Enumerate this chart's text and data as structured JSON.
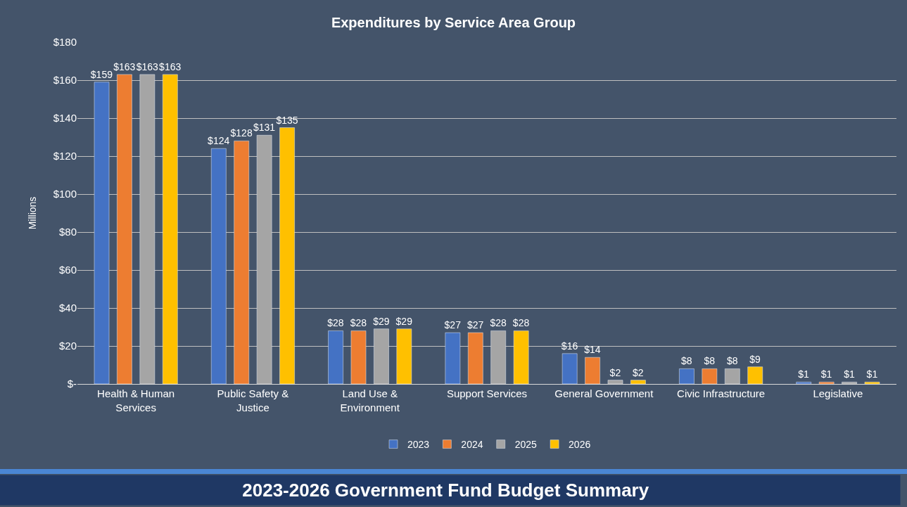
{
  "chart_data": {
    "type": "bar",
    "title": "Expenditures by Service Area Group",
    "ylabel": "Millions",
    "annotations": [
      "2023-2026 Government Fund Budget Summary"
    ],
    "categories": [
      "Health & Human\nServices",
      "Public Safety &\nJustice",
      "Land Use &\nEnvironment",
      "Support Services",
      "General Government",
      "Civic Infrastructure",
      "Legislative"
    ],
    "series": [
      {
        "name": "2023",
        "color": "#4472c4",
        "values": [
          159,
          124,
          28,
          27,
          16,
          8,
          1
        ],
        "value_labels": [
          "$159",
          "$124",
          "$28",
          "$27",
          "$16",
          "$8",
          "$1"
        ]
      },
      {
        "name": "2024",
        "color": "#ed7d31",
        "values": [
          163,
          128,
          28,
          27,
          14,
          8,
          1
        ],
        "value_labels": [
          "$163",
          "$128",
          "$28",
          "$27",
          "$14",
          "$8",
          "$1"
        ]
      },
      {
        "name": "2025",
        "color": "#a5a5a5",
        "values": [
          163,
          131,
          29,
          28,
          2,
          8,
          1
        ],
        "value_labels": [
          "$163",
          "$131",
          "$29",
          "$28",
          "$2",
          "$8",
          "$1"
        ]
      },
      {
        "name": "2026",
        "color": "#ffc000",
        "values": [
          163,
          135,
          29,
          28,
          2,
          9,
          1
        ],
        "value_labels": [
          "$163",
          "$135",
          "$29",
          "$28",
          "$2",
          "$9",
          "$1"
        ]
      }
    ],
    "ylim": [
      0,
      180
    ],
    "yticks": [
      {
        "value": 0,
        "label": "$-"
      },
      {
        "value": 20,
        "label": "$20"
      },
      {
        "value": 40,
        "label": "$40"
      },
      {
        "value": 60,
        "label": "$60"
      },
      {
        "value": 80,
        "label": "$80"
      },
      {
        "value": 100,
        "label": "$100"
      },
      {
        "value": 120,
        "label": "$120"
      },
      {
        "value": 140,
        "label": "$140"
      },
      {
        "value": 160,
        "label": "$160"
      },
      {
        "value": 180,
        "label": "$180"
      }
    ],
    "grid": "y",
    "legend": "bottom"
  }
}
